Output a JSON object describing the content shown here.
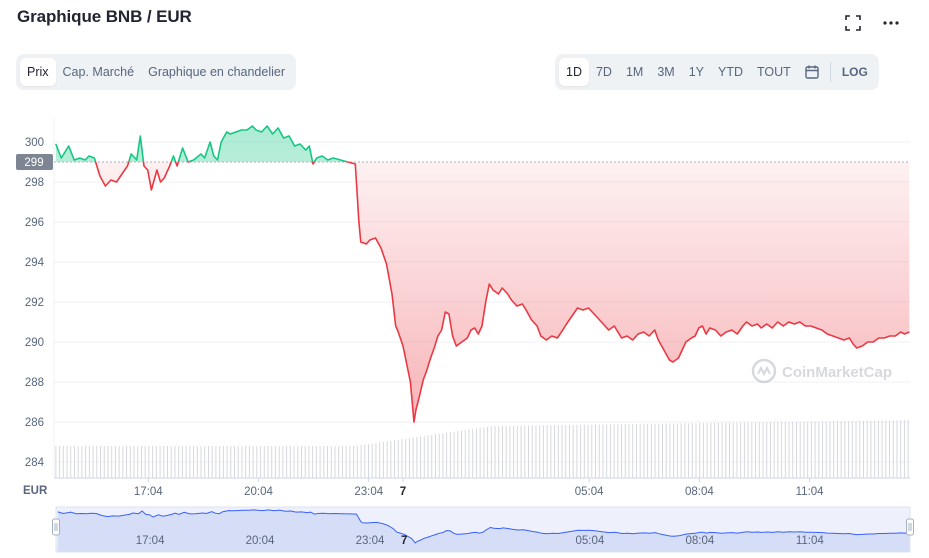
{
  "header": {
    "title": "Graphique BNB / EUR",
    "fullscreen_icon": "fullscreen-icon",
    "more_icon": "more-dots-icon"
  },
  "chart_tabs": [
    {
      "label": "Prix",
      "active": true
    },
    {
      "label": "Cap. Marché",
      "active": false
    },
    {
      "label": "Graphique en chandelier",
      "active": false
    }
  ],
  "ranges": [
    {
      "label": "1D",
      "active": true
    },
    {
      "label": "7D",
      "active": false
    },
    {
      "label": "1M",
      "active": false
    },
    {
      "label": "3M",
      "active": false
    },
    {
      "label": "1Y",
      "active": false
    },
    {
      "label": "YTD",
      "active": false
    },
    {
      "label": "TOUT",
      "active": false
    }
  ],
  "calendar_icon": "calendar-icon",
  "log_label": "LOG",
  "watermark": "CoinMarketCap",
  "colors": {
    "up": "#16c784",
    "down": "#ea3943",
    "volume": "#d5d8de",
    "navigator": "#3861fb"
  },
  "chart_data": {
    "type": "line",
    "y_unit_label": "EUR",
    "reference_price": 299,
    "reference_label": "299",
    "ylim": [
      283.2,
      301.2
    ],
    "yticks": [
      284,
      286,
      288,
      290,
      292,
      294,
      296,
      298,
      300
    ],
    "xlim": [
      14.5,
      37.8
    ],
    "xticks": [
      {
        "x": 17.067,
        "label": "17:04"
      },
      {
        "x": 20.067,
        "label": "20:04"
      },
      {
        "x": 23.067,
        "label": "23:04"
      },
      {
        "x": 24.0,
        "label": "7"
      },
      {
        "x": 29.067,
        "label": "05:04"
      },
      {
        "x": 32.067,
        "label": "08:04"
      },
      {
        "x": 35.067,
        "label": "11:04"
      }
    ],
    "grid": true,
    "series": [
      {
        "values": [
          [
            14.55,
            299.9
          ],
          [
            14.7,
            299.2
          ],
          [
            14.9,
            299.8
          ],
          [
            15.05,
            299.1
          ],
          [
            15.2,
            299.2
          ],
          [
            15.35,
            299.1
          ],
          [
            15.45,
            299.3
          ],
          [
            15.6,
            299.2
          ],
          [
            15.75,
            298.3
          ],
          [
            15.9,
            297.8
          ],
          [
            16.05,
            298.1
          ],
          [
            16.2,
            298.0
          ],
          [
            16.35,
            298.4
          ],
          [
            16.5,
            298.8
          ],
          [
            16.6,
            299.4
          ],
          [
            16.75,
            299.1
          ],
          [
            16.85,
            300.3
          ],
          [
            16.95,
            298.8
          ],
          [
            17.05,
            298.6
          ],
          [
            17.15,
            297.6
          ],
          [
            17.3,
            298.6
          ],
          [
            17.4,
            298.0
          ],
          [
            17.5,
            298.2
          ],
          [
            17.65,
            298.8
          ],
          [
            17.75,
            299.3
          ],
          [
            17.85,
            298.8
          ],
          [
            18.0,
            299.7
          ],
          [
            18.15,
            299.0
          ],
          [
            18.3,
            299.1
          ],
          [
            18.5,
            299.4
          ],
          [
            18.6,
            299.2
          ],
          [
            18.75,
            300.0
          ],
          [
            18.85,
            299.3
          ],
          [
            18.95,
            299.1
          ],
          [
            19.05,
            300.0
          ],
          [
            19.2,
            300.5
          ],
          [
            19.3,
            300.4
          ],
          [
            19.45,
            300.5
          ],
          [
            19.6,
            300.6
          ],
          [
            19.75,
            300.6
          ],
          [
            19.9,
            300.8
          ],
          [
            20.0,
            300.6
          ],
          [
            20.15,
            300.5
          ],
          [
            20.3,
            300.8
          ],
          [
            20.45,
            300.4
          ],
          [
            20.6,
            300.7
          ],
          [
            20.75,
            300.2
          ],
          [
            20.9,
            300.3
          ],
          [
            21.05,
            299.8
          ],
          [
            21.2,
            299.9
          ],
          [
            21.35,
            299.6
          ],
          [
            21.45,
            299.8
          ],
          [
            21.55,
            298.9
          ],
          [
            21.65,
            299.2
          ],
          [
            21.8,
            299.3
          ],
          [
            21.95,
            299.1
          ],
          [
            22.1,
            299.2
          ],
          [
            22.3,
            299.1
          ],
          [
            22.5,
            299.0
          ],
          [
            22.7,
            298.9
          ],
          [
            22.8,
            296.0
          ],
          [
            22.85,
            295.0
          ],
          [
            23.0,
            294.9
          ],
          [
            23.1,
            295.1
          ],
          [
            23.25,
            295.2
          ],
          [
            23.4,
            294.7
          ],
          [
            23.55,
            293.9
          ],
          [
            23.7,
            292.4
          ],
          [
            23.8,
            290.8
          ],
          [
            23.85,
            290.6
          ],
          [
            24.0,
            289.8
          ],
          [
            24.1,
            288.9
          ],
          [
            24.2,
            288.0
          ],
          [
            24.25,
            287.0
          ],
          [
            24.3,
            286.0
          ],
          [
            24.35,
            286.6
          ],
          [
            24.45,
            287.3
          ],
          [
            24.55,
            288.1
          ],
          [
            24.65,
            288.6
          ],
          [
            24.75,
            289.2
          ],
          [
            24.85,
            289.7
          ],
          [
            24.95,
            290.3
          ],
          [
            25.05,
            290.6
          ],
          [
            25.15,
            291.5
          ],
          [
            25.25,
            291.4
          ],
          [
            25.35,
            290.3
          ],
          [
            25.45,
            289.8
          ],
          [
            25.6,
            290.0
          ],
          [
            25.75,
            290.2
          ],
          [
            25.85,
            290.6
          ],
          [
            25.95,
            290.7
          ],
          [
            26.05,
            290.4
          ],
          [
            26.15,
            290.8
          ],
          [
            26.25,
            292.0
          ],
          [
            26.35,
            292.9
          ],
          [
            26.45,
            292.6
          ],
          [
            26.6,
            292.4
          ],
          [
            26.7,
            292.7
          ],
          [
            26.85,
            292.4
          ],
          [
            26.95,
            292.1
          ],
          [
            27.1,
            291.8
          ],
          [
            27.25,
            291.9
          ],
          [
            27.35,
            291.6
          ],
          [
            27.5,
            291.1
          ],
          [
            27.65,
            290.8
          ],
          [
            27.75,
            290.3
          ],
          [
            27.9,
            290.1
          ],
          [
            28.05,
            290.3
          ],
          [
            28.2,
            290.2
          ],
          [
            28.35,
            290.6
          ],
          [
            28.45,
            290.9
          ],
          [
            28.6,
            291.3
          ],
          [
            28.75,
            291.7
          ],
          [
            28.9,
            291.6
          ],
          [
            29.05,
            291.7
          ],
          [
            29.2,
            291.4
          ],
          [
            29.35,
            291.1
          ],
          [
            29.45,
            290.9
          ],
          [
            29.6,
            290.6
          ],
          [
            29.75,
            290.8
          ],
          [
            29.85,
            290.5
          ],
          [
            29.95,
            290.2
          ],
          [
            30.1,
            290.3
          ],
          [
            30.25,
            290.1
          ],
          [
            30.4,
            290.4
          ],
          [
            30.55,
            290.5
          ],
          [
            30.7,
            290.3
          ],
          [
            30.85,
            290.6
          ],
          [
            30.95,
            290.1
          ],
          [
            31.1,
            289.6
          ],
          [
            31.25,
            289.1
          ],
          [
            31.35,
            289.0
          ],
          [
            31.5,
            289.2
          ],
          [
            31.6,
            289.6
          ],
          [
            31.7,
            290.0
          ],
          [
            31.85,
            290.2
          ],
          [
            31.95,
            290.3
          ],
          [
            32.05,
            290.7
          ],
          [
            32.15,
            290.8
          ],
          [
            32.25,
            290.4
          ],
          [
            32.35,
            290.7
          ],
          [
            32.5,
            290.6
          ],
          [
            32.65,
            290.3
          ],
          [
            32.8,
            290.5
          ],
          [
            32.95,
            290.6
          ],
          [
            33.1,
            290.4
          ],
          [
            33.25,
            290.8
          ],
          [
            33.35,
            291.0
          ],
          [
            33.5,
            290.8
          ],
          [
            33.65,
            290.9
          ],
          [
            33.75,
            290.7
          ],
          [
            33.9,
            290.9
          ],
          [
            34.05,
            290.7
          ],
          [
            34.2,
            291.0
          ],
          [
            34.35,
            290.8
          ],
          [
            34.5,
            291.0
          ],
          [
            34.65,
            290.9
          ],
          [
            34.8,
            291.0
          ],
          [
            34.95,
            290.8
          ],
          [
            35.1,
            290.8
          ],
          [
            35.25,
            290.7
          ],
          [
            35.4,
            290.6
          ],
          [
            35.55,
            290.4
          ],
          [
            35.7,
            290.3
          ],
          [
            35.85,
            290.2
          ],
          [
            36.0,
            290.1
          ],
          [
            36.15,
            290.2
          ],
          [
            36.25,
            289.9
          ],
          [
            36.35,
            289.7
          ],
          [
            36.5,
            289.8
          ],
          [
            36.65,
            290.0
          ],
          [
            36.8,
            290.0
          ],
          [
            36.95,
            290.2
          ],
          [
            37.1,
            290.2
          ],
          [
            37.25,
            290.3
          ],
          [
            37.4,
            290.3
          ],
          [
            37.55,
            290.5
          ],
          [
            37.65,
            290.4
          ],
          [
            37.78,
            290.5
          ]
        ]
      }
    ],
    "navigator_ticks": [
      "17:04",
      "20:04",
      "23:04",
      "7",
      "05:04",
      "08:04",
      "11:04"
    ]
  }
}
